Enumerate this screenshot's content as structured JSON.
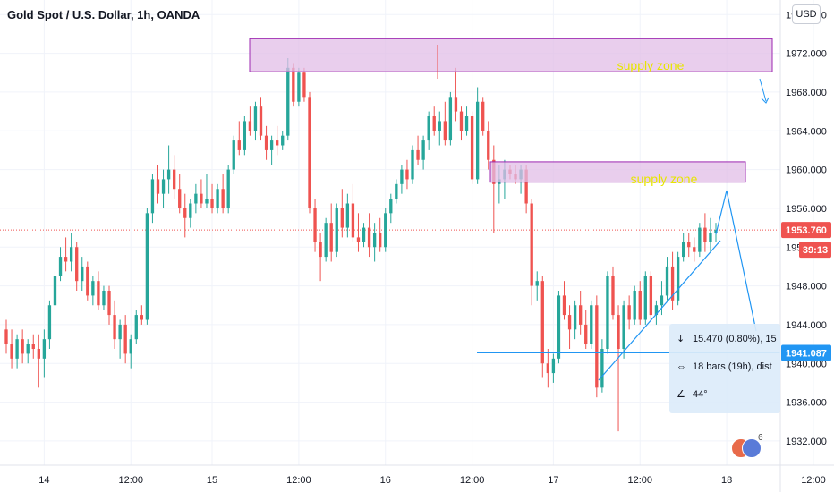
{
  "header": {
    "title": "Gold Spot / U.S. Dollar, 1h, OANDA",
    "currency_button": "USD"
  },
  "chart_data": {
    "type": "candlestick",
    "title": "Gold Spot / U.S. Dollar, 1h, OANDA",
    "y_axis_ticks": [
      "1976.000",
      "1972.000",
      "1968.000",
      "1964.000",
      "1960.000",
      "1956.000",
      "1952.000",
      "1948.000",
      "1944.000",
      "1940.000",
      "1936.000",
      "1932.000"
    ],
    "ylim": [
      1929.5,
      1977.5
    ],
    "x_axis_ticks": [
      "14",
      "12:00",
      "15",
      "12:00",
      "16",
      "12:00",
      "17",
      "12:00",
      "18",
      "12:00"
    ],
    "current_price": "1953.760",
    "countdown": "39:13",
    "measured_price": "1941.087",
    "colors": {
      "up": "#26a69a",
      "down": "#ef5350",
      "zone_fill": "#e1bee7",
      "zone_border": "#9c27b0",
      "zone_text": "#e6e600",
      "trend": "#2196f3"
    },
    "annotations": [
      {
        "text": "supply zone",
        "price_top": 1973.5,
        "price_bottom": 1970.1
      },
      {
        "text": "supply zone",
        "price_top": 1960.8,
        "price_bottom": 1958.7
      }
    ],
    "candles": [
      [
        1943.5,
        1944.5,
        1941.0,
        1942.0
      ],
      [
        1942.0,
        1943.5,
        1939.5,
        1940.5
      ],
      [
        1940.5,
        1943.0,
        1939.5,
        1942.5
      ],
      [
        1942.5,
        1943.5,
        1940.0,
        1941.0
      ],
      [
        1941.0,
        1942.5,
        1940.0,
        1942.0
      ],
      [
        1942.0,
        1943.0,
        1940.5,
        1941.5
      ],
      [
        1941.5,
        1943.0,
        1937.5,
        1940.5
      ],
      [
        1940.5,
        1943.5,
        1938.5,
        1942.5
      ],
      [
        1942.5,
        1946.5,
        1941.5,
        1946.0
      ],
      [
        1946.0,
        1949.5,
        1945.5,
        1949.0
      ],
      [
        1949.0,
        1952.0,
        1948.5,
        1951.0
      ],
      [
        1951.0,
        1953.0,
        1949.5,
        1950.5
      ],
      [
        1950.5,
        1953.5,
        1949.5,
        1952.0
      ],
      [
        1952.0,
        1952.5,
        1947.5,
        1948.5
      ],
      [
        1948.5,
        1951.0,
        1947.5,
        1950.0
      ],
      [
        1950.0,
        1950.5,
        1946.5,
        1947.0
      ],
      [
        1947.0,
        1949.0,
        1946.0,
        1948.5
      ],
      [
        1948.5,
        1949.5,
        1945.5,
        1946.0
      ],
      [
        1946.0,
        1948.0,
        1945.5,
        1947.5
      ],
      [
        1947.5,
        1948.0,
        1944.0,
        1945.0
      ],
      [
        1945.0,
        1946.5,
        1941.5,
        1942.5
      ],
      [
        1942.5,
        1944.5,
        1940.5,
        1944.0
      ],
      [
        1944.0,
        1945.0,
        1940.0,
        1941.0
      ],
      [
        1941.0,
        1943.0,
        1939.5,
        1942.5
      ],
      [
        1942.5,
        1945.5,
        1942.0,
        1945.0
      ],
      [
        1945.0,
        1946.0,
        1944.0,
        1944.5
      ],
      [
        1944.5,
        1956.0,
        1944.0,
        1955.5
      ],
      [
        1955.5,
        1959.5,
        1954.5,
        1959.0
      ],
      [
        1959.0,
        1960.5,
        1956.5,
        1957.5
      ],
      [
        1957.5,
        1960.0,
        1956.0,
        1959.0
      ],
      [
        1959.0,
        1962.5,
        1957.5,
        1960.0
      ],
      [
        1960.0,
        1961.5,
        1957.0,
        1958.0
      ],
      [
        1958.0,
        1959.5,
        1955.5,
        1956.0
      ],
      [
        1956.0,
        1957.5,
        1953.0,
        1955.0
      ],
      [
        1955.0,
        1957.0,
        1954.0,
        1956.5
      ],
      [
        1956.5,
        1958.5,
        1955.5,
        1957.5
      ],
      [
        1957.5,
        1959.0,
        1956.0,
        1956.5
      ],
      [
        1956.5,
        1959.5,
        1956.0,
        1957.0
      ],
      [
        1957.0,
        1958.5,
        1955.5,
        1956.0
      ],
      [
        1956.0,
        1958.5,
        1955.5,
        1958.0
      ],
      [
        1958.0,
        1959.5,
        1955.5,
        1956.0
      ],
      [
        1956.0,
        1960.5,
        1955.5,
        1960.0
      ],
      [
        1960.0,
        1963.5,
        1959.5,
        1963.0
      ],
      [
        1963.0,
        1965.0,
        1961.5,
        1962.0
      ],
      [
        1962.0,
        1965.5,
        1961.5,
        1965.0
      ],
      [
        1965.0,
        1966.5,
        1963.5,
        1964.0
      ],
      [
        1964.0,
        1967.0,
        1963.0,
        1966.5
      ],
      [
        1966.5,
        1967.5,
        1963.0,
        1963.5
      ],
      [
        1963.5,
        1964.5,
        1961.0,
        1962.0
      ],
      [
        1962.0,
        1963.5,
        1960.5,
        1963.0
      ],
      [
        1963.0,
        1964.5,
        1961.5,
        1962.5
      ],
      [
        1962.5,
        1964.0,
        1962.0,
        1963.5
      ],
      [
        1963.5,
        1971.5,
        1963.0,
        1970.5
      ],
      [
        1970.5,
        1971.0,
        1966.5,
        1967.0
      ],
      [
        1967.0,
        1970.5,
        1966.5,
        1970.0
      ],
      [
        1970.0,
        1970.5,
        1967.0,
        1967.5
      ],
      [
        1967.5,
        1968.0,
        1955.5,
        1956.0
      ],
      [
        1956.0,
        1957.0,
        1951.5,
        1952.5
      ],
      [
        1952.5,
        1953.5,
        1948.5,
        1951.0
      ],
      [
        1951.0,
        1955.0,
        1950.5,
        1954.5
      ],
      [
        1954.5,
        1956.5,
        1950.5,
        1951.5
      ],
      [
        1951.5,
        1956.5,
        1951.0,
        1956.0
      ],
      [
        1956.0,
        1958.0,
        1953.0,
        1954.0
      ],
      [
        1954.0,
        1957.5,
        1953.0,
        1956.5
      ],
      [
        1956.5,
        1958.5,
        1952.5,
        1953.0
      ],
      [
        1953.0,
        1955.5,
        1951.5,
        1952.5
      ],
      [
        1952.5,
        1954.5,
        1952.0,
        1954.0
      ],
      [
        1954.0,
        1955.5,
        1951.0,
        1952.0
      ],
      [
        1952.0,
        1954.5,
        1950.5,
        1953.5
      ],
      [
        1953.5,
        1955.0,
        1951.5,
        1952.0
      ],
      [
        1952.0,
        1956.0,
        1951.5,
        1955.5
      ],
      [
        1955.5,
        1957.5,
        1954.5,
        1957.0
      ],
      [
        1957.0,
        1959.0,
        1956.5,
        1958.5
      ],
      [
        1958.5,
        1960.5,
        1957.5,
        1960.0
      ],
      [
        1960.0,
        1961.0,
        1958.0,
        1959.0
      ],
      [
        1959.0,
        1962.5,
        1958.5,
        1962.0
      ],
      [
        1962.0,
        1963.5,
        1960.5,
        1961.0
      ],
      [
        1961.0,
        1963.5,
        1960.0,
        1963.0
      ],
      [
        1963.0,
        1966.0,
        1962.0,
        1965.5
      ],
      [
        1965.5,
        1966.5,
        1963.5,
        1964.0
      ],
      [
        1964.0,
        1966.0,
        1962.5,
        1965.0
      ],
      [
        1965.0,
        1967.0,
        1962.5,
        1963.0
      ],
      [
        1963.0,
        1968.0,
        1962.5,
        1967.5
      ],
      [
        1967.5,
        1970.5,
        1965.0,
        1966.0
      ],
      [
        1966.0,
        1966.5,
        1963.0,
        1964.0
      ],
      [
        1964.0,
        1966.5,
        1963.5,
        1965.5
      ],
      [
        1965.5,
        1966.0,
        1958.5,
        1959.0
      ],
      [
        1959.0,
        1968.5,
        1958.5,
        1967.0
      ],
      [
        1967.0,
        1967.5,
        1963.5,
        1964.0
      ],
      [
        1964.0,
        1965.0,
        1960.0,
        1961.0
      ],
      [
        1961.0,
        1962.5,
        1953.5,
        1958.5
      ],
      [
        1958.5,
        1960.5,
        1956.5,
        1959.0
      ],
      [
        1959.0,
        1961.0,
        1957.0,
        1960.0
      ],
      [
        1960.0,
        1960.5,
        1959.0,
        1959.5
      ],
      [
        1959.5,
        1960.5,
        1958.5,
        1959.0
      ],
      [
        1959.0,
        1960.5,
        1957.5,
        1960.0
      ],
      [
        1960.0,
        1960.5,
        1955.5,
        1956.5
      ],
      [
        1956.5,
        1957.0,
        1946.0,
        1948.0
      ],
      [
        1948.0,
        1949.5,
        1946.5,
        1948.5
      ],
      [
        1948.5,
        1949.0,
        1938.5,
        1940.0
      ],
      [
        1940.0,
        1941.5,
        1937.5,
        1939.0
      ],
      [
        1939.0,
        1941.0,
        1938.0,
        1940.5
      ],
      [
        1940.5,
        1947.5,
        1940.0,
        1947.0
      ],
      [
        1947.0,
        1948.5,
        1944.5,
        1945.0
      ],
      [
        1945.0,
        1946.0,
        1941.5,
        1943.5
      ],
      [
        1943.5,
        1946.5,
        1942.5,
        1946.0
      ],
      [
        1946.0,
        1947.5,
        1943.0,
        1944.0
      ],
      [
        1944.0,
        1945.5,
        1941.5,
        1942.0
      ],
      [
        1942.0,
        1946.5,
        1941.5,
        1946.0
      ],
      [
        1946.0,
        1947.0,
        1936.5,
        1937.5
      ],
      [
        1937.5,
        1942.5,
        1937.0,
        1941.5
      ],
      [
        1941.5,
        1949.5,
        1941.0,
        1949.0
      ],
      [
        1949.0,
        1950.0,
        1944.5,
        1945.0
      ],
      [
        1945.0,
        1946.0,
        1933.0,
        1941.5
      ],
      [
        1941.5,
        1946.5,
        1940.5,
        1946.0
      ],
      [
        1946.0,
        1947.0,
        1943.5,
        1944.5
      ],
      [
        1944.5,
        1948.0,
        1944.0,
        1947.5
      ],
      [
        1947.5,
        1948.5,
        1944.0,
        1944.5
      ],
      [
        1944.5,
        1949.5,
        1944.0,
        1949.0
      ],
      [
        1949.0,
        1949.5,
        1944.5,
        1945.0
      ],
      [
        1945.0,
        1946.5,
        1944.0,
        1946.0
      ],
      [
        1946.0,
        1948.5,
        1945.0,
        1947.0
      ],
      [
        1947.0,
        1951.0,
        1946.5,
        1950.0
      ],
      [
        1950.0,
        1951.5,
        1945.5,
        1946.5
      ],
      [
        1946.5,
        1951.5,
        1946.0,
        1951.0
      ],
      [
        1951.0,
        1953.5,
        1950.5,
        1952.5
      ],
      [
        1952.5,
        1953.5,
        1951.0,
        1952.0
      ],
      [
        1952.0,
        1953.0,
        1950.5,
        1951.5
      ],
      [
        1951.5,
        1954.5,
        1951.0,
        1954.0
      ],
      [
        1954.0,
        1955.5,
        1951.5,
        1952.5
      ],
      [
        1952.5,
        1955.0,
        1951.5,
        1953.5
      ],
      [
        1953.5,
        1954.5,
        1952.5,
        1953.76
      ]
    ]
  },
  "measure_popup": {
    "row1": "15.470 (0.80%), 15",
    "row2": "18 bars (19h), dist",
    "row3": "44°"
  },
  "logo": {
    "count": "6"
  }
}
